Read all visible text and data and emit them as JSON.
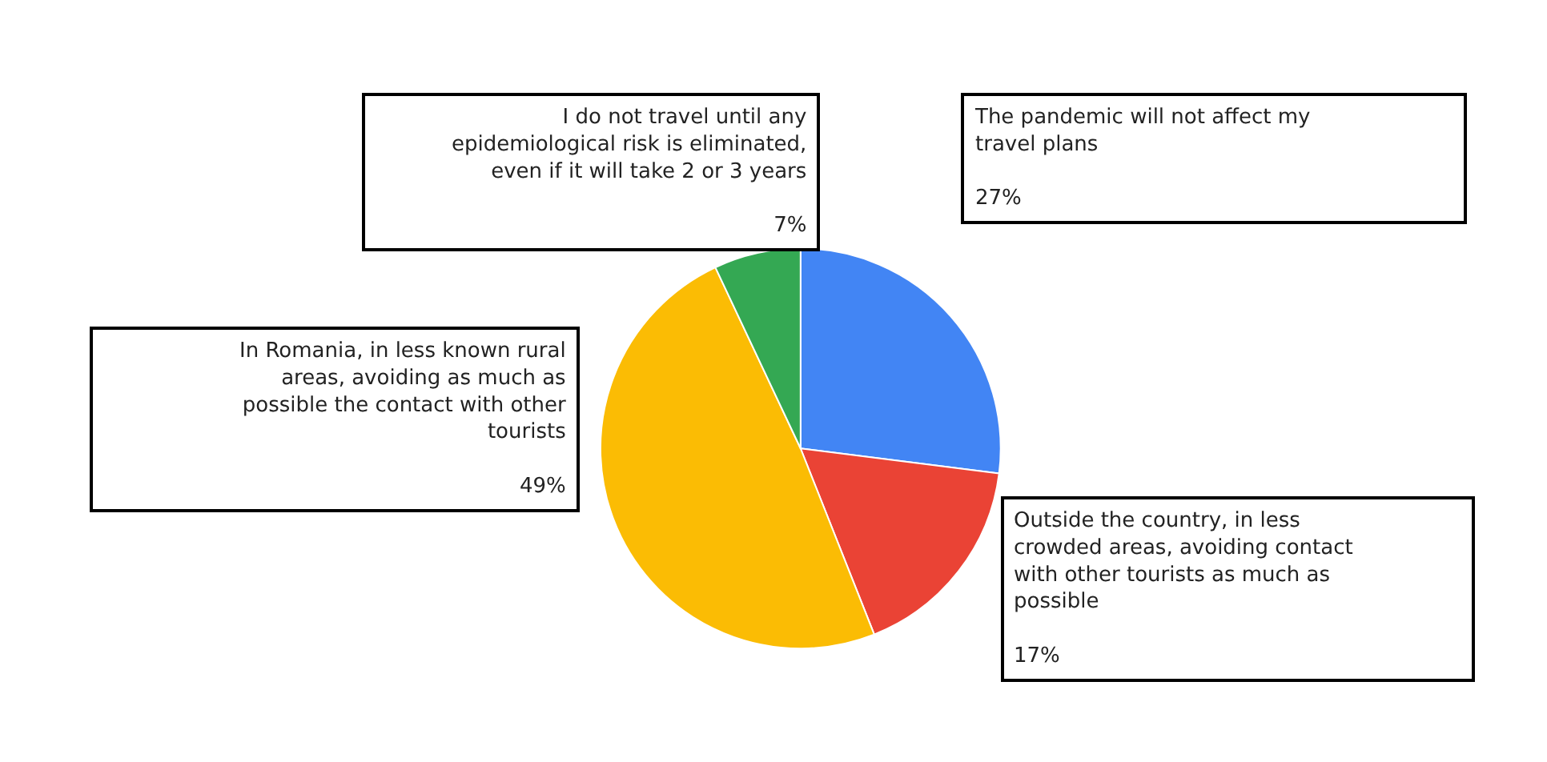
{
  "chart_data": {
    "type": "pie",
    "categories": [
      "The pandemic will not affect my travel plans",
      "Outside the country, in less crowded areas, avoiding contact with other tourists as much as possible",
      "In Romania, in less known rural areas, avoiding as much as possible the contact with other tourists",
      "I do not travel until any epidemiological risk is eliminated, even if it will take 2 or 3 years"
    ],
    "values": [
      27,
      17,
      49,
      7
    ],
    "colors": [
      "#4285f4",
      "#ea4335",
      "#fbbc04",
      "#34a853"
    ],
    "value_labels": [
      "27%",
      "17%",
      "49%",
      "7%"
    ],
    "legend": false
  }
}
